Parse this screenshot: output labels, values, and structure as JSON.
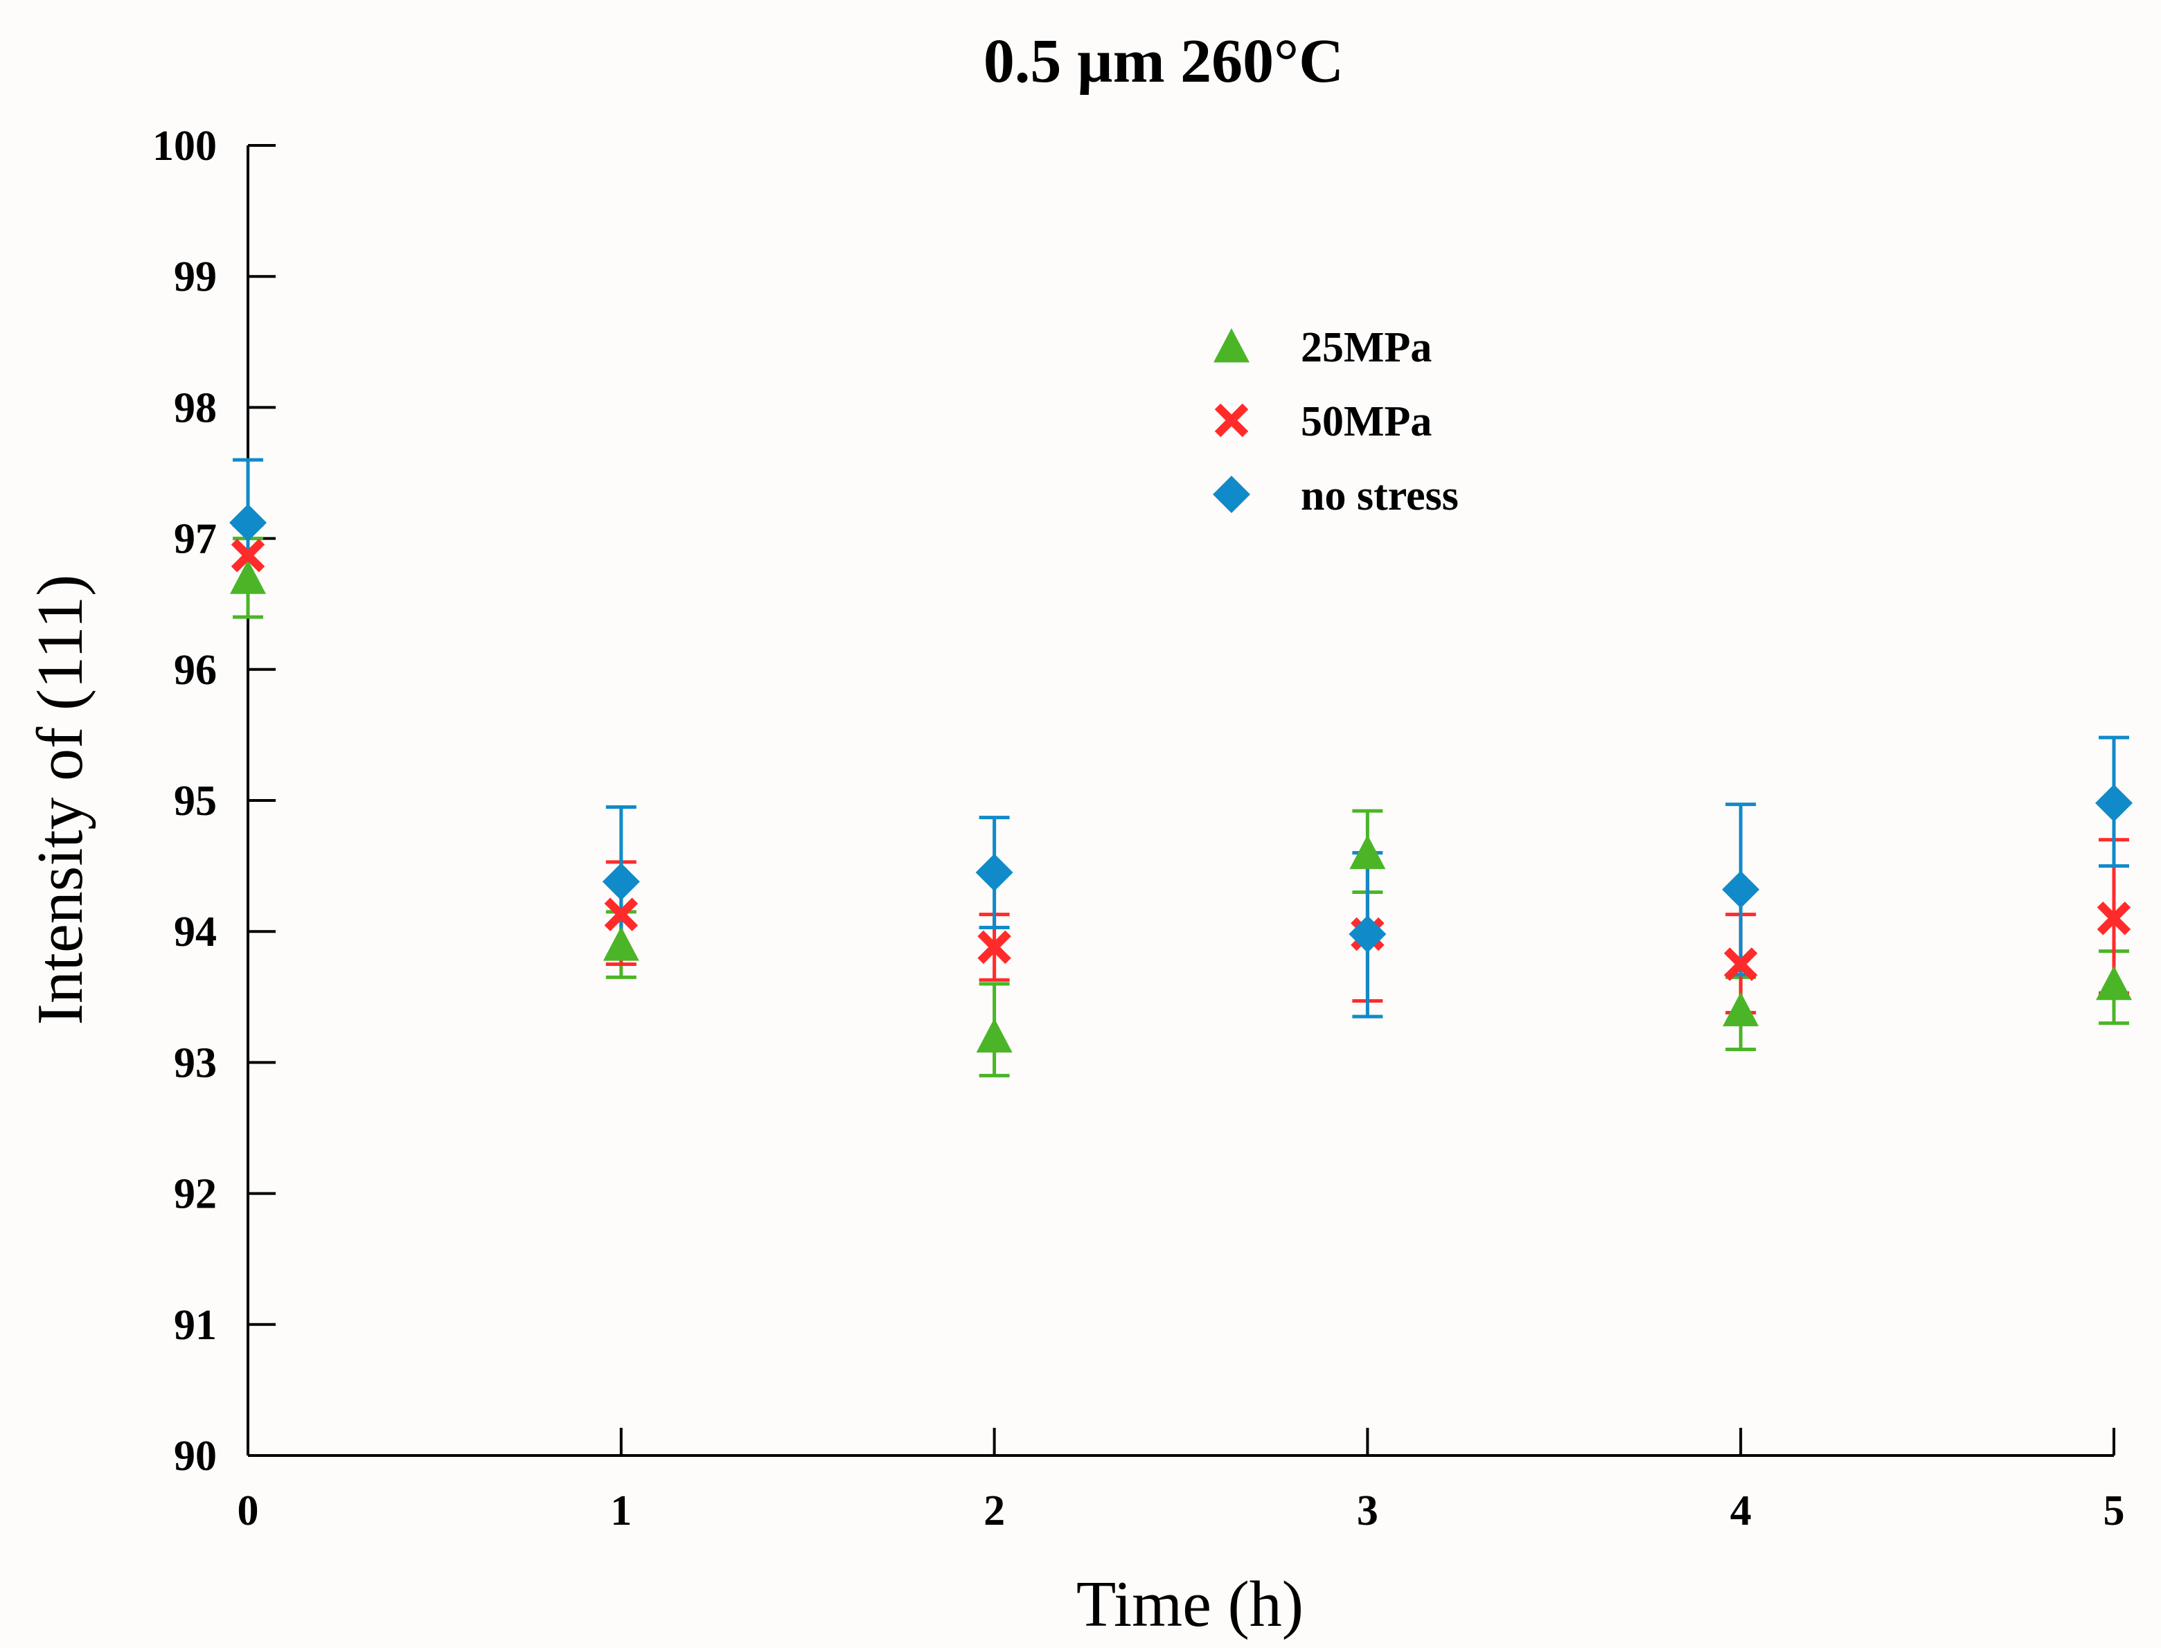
{
  "chart_data": {
    "type": "scatter",
    "title": "0.5 µm 260°C",
    "xlabel": "Time (h)",
    "ylabel": "Intensity of (111)",
    "xlim": [
      0,
      5
    ],
    "ylim": [
      90,
      100
    ],
    "xticks": [
      "0",
      "1",
      "2",
      "3",
      "4",
      "5"
    ],
    "yticks": [
      "90",
      "91",
      "92",
      "93",
      "94",
      "95",
      "96",
      "97",
      "98",
      "99",
      "100"
    ],
    "legend_position": "upper-middle",
    "x": [
      0,
      1,
      2,
      3,
      4,
      5
    ],
    "series": [
      {
        "name": "25MPa",
        "marker": "triangle",
        "color": "#4bb527",
        "values": [
          96.7,
          93.9,
          93.2,
          94.6,
          93.4,
          93.6
        ],
        "err_upper": [
          97.0,
          94.15,
          93.6,
          94.92,
          93.65,
          93.85
        ],
        "err_lower": [
          96.4,
          93.65,
          92.9,
          94.3,
          93.1,
          93.3
        ]
      },
      {
        "name": "50MPa",
        "marker": "x",
        "color": "#ff2b2b",
        "values": [
          96.87,
          94.13,
          93.88,
          93.98,
          93.75,
          94.1
        ],
        "err_upper": [
          97.1,
          94.53,
          94.13,
          94.5,
          94.13,
          94.7
        ],
        "err_lower": [
          96.6,
          93.75,
          93.63,
          93.47,
          93.38,
          93.53
        ]
      },
      {
        "name": "no stress",
        "marker": "diamond",
        "color": "#118ac9",
        "values": [
          97.12,
          94.38,
          94.45,
          93.98,
          94.32,
          94.98
        ],
        "err_upper": [
          97.6,
          94.95,
          94.87,
          94.6,
          94.97,
          95.48
        ],
        "err_lower": [
          96.6,
          93.8,
          94.03,
          93.35,
          93.67,
          94.5
        ]
      }
    ]
  }
}
